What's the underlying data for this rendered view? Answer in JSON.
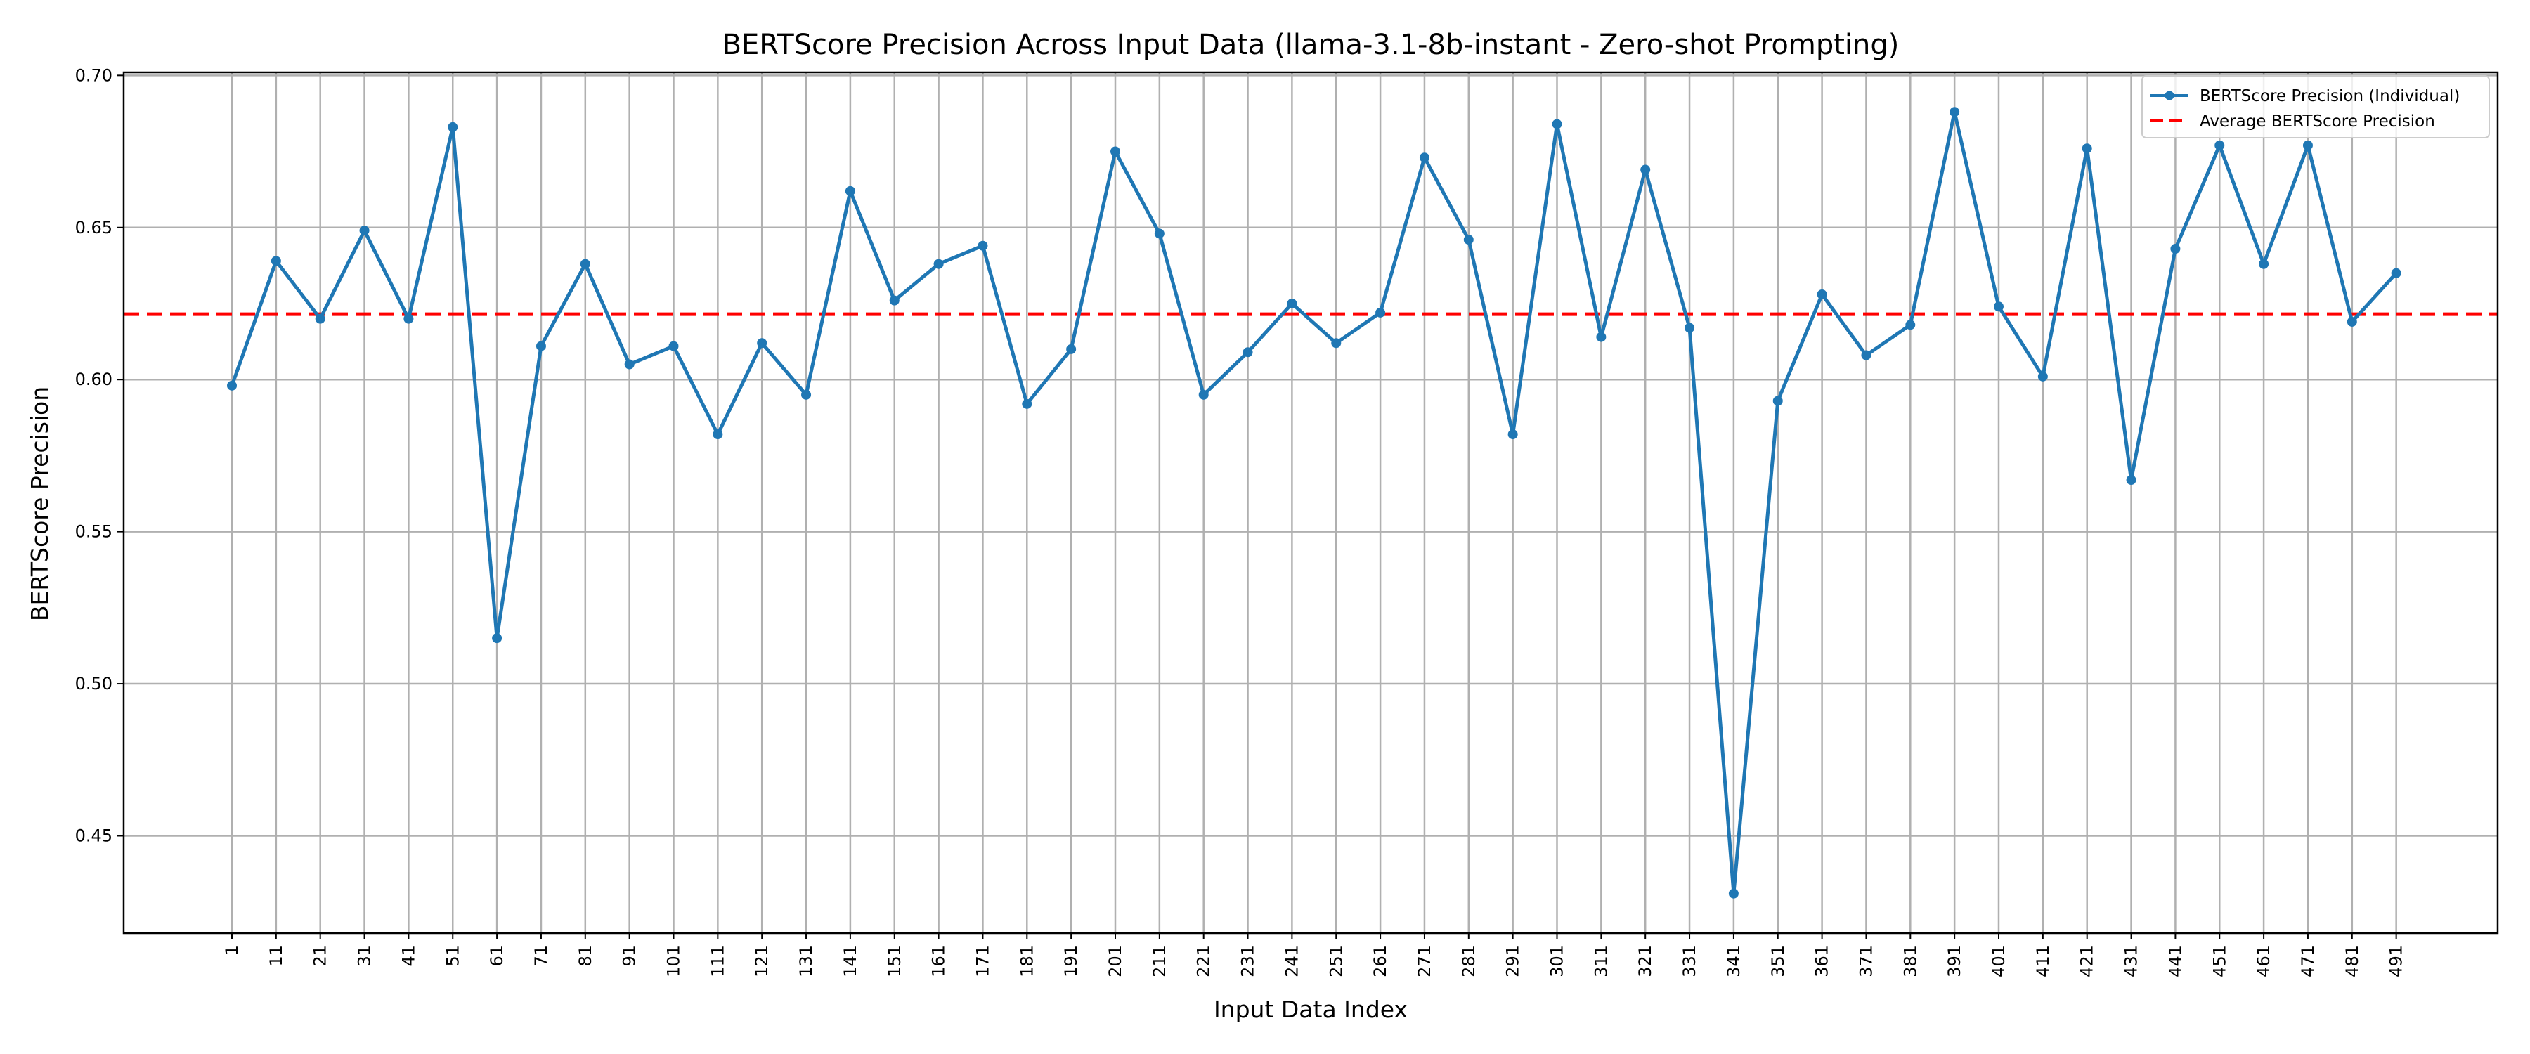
{
  "chart_data": {
    "type": "line",
    "title": "BERTScore Precision Across Input Data (llama-3.1-8b-instant - Zero-shot Prompting)",
    "xlabel": "Input Data Index",
    "ylabel": "BERTScore Precision",
    "categories": [
      "1",
      "11",
      "21",
      "31",
      "41",
      "51",
      "61",
      "71",
      "81",
      "91",
      "101",
      "111",
      "121",
      "131",
      "141",
      "151",
      "161",
      "171",
      "181",
      "191",
      "201",
      "211",
      "221",
      "231",
      "241",
      "251",
      "261",
      "271",
      "281",
      "291",
      "301",
      "311",
      "321",
      "331",
      "341",
      "351",
      "361",
      "371",
      "381",
      "391",
      "401",
      "411",
      "421",
      "431",
      "441",
      "451",
      "461",
      "471",
      "481",
      "491"
    ],
    "series": [
      {
        "name": "BERTScore Precision (Individual)",
        "color": "#1f77b4",
        "values": [
          0.598,
          0.639,
          0.62,
          0.649,
          0.62,
          0.683,
          0.515,
          0.611,
          0.638,
          0.605,
          0.611,
          0.582,
          0.612,
          0.595,
          0.662,
          0.626,
          0.638,
          0.644,
          0.592,
          0.61,
          0.675,
          0.648,
          0.595,
          0.609,
          0.625,
          0.612,
          0.622,
          0.673,
          0.646,
          0.582,
          0.684,
          0.614,
          0.669,
          0.617,
          0.431,
          0.593,
          0.628,
          0.608,
          0.618,
          0.688,
          0.624,
          0.601,
          0.676,
          0.567,
          0.643,
          0.677,
          0.638,
          0.677,
          0.619,
          0.635
        ]
      }
    ],
    "average": {
      "name": "Average BERTScore Precision",
      "value": 0.6215,
      "color": "#ff0000"
    },
    "yticks": [
      "0.45",
      "0.50",
      "0.55",
      "0.60",
      "0.65",
      "0.70"
    ],
    "ylim": [
      0.418,
      0.701
    ],
    "grid": true,
    "legend_position": "top-right"
  }
}
